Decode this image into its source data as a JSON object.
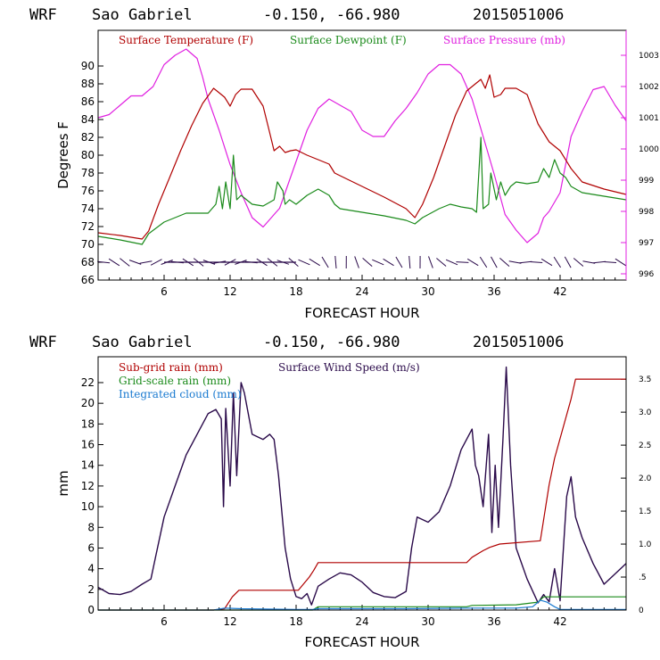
{
  "chart_data": [
    {
      "type": "line",
      "header": {
        "model": "WRF",
        "location": "Sao Gabriel",
        "coords": "-0.150, -66.980",
        "run": "2015051006"
      },
      "xlabel": "FORECAST HOUR",
      "ylabel": "Degrees F",
      "xlim": [
        0,
        48
      ],
      "ylim": [
        66,
        94
      ],
      "y2lim": [
        995.8,
        1003.8
      ],
      "xticks": [
        "6",
        "12",
        "18",
        "24",
        "30",
        "36",
        "42"
      ],
      "xtick_values": [
        6,
        12,
        18,
        24,
        30,
        36,
        42
      ],
      "yticks": [
        "66",
        "68",
        "70",
        "72",
        "74",
        "76",
        "78",
        "80",
        "82",
        "84",
        "86",
        "88",
        "90"
      ],
      "ytick_values": [
        66,
        68,
        70,
        72,
        74,
        76,
        78,
        80,
        82,
        84,
        86,
        88,
        90
      ],
      "y2ticks": [
        "996",
        "997",
        "998",
        "999",
        "1000",
        "1001",
        "1002",
        "1003"
      ],
      "y2tick_values": [
        996,
        997,
        998,
        999,
        1000,
        1001,
        1002,
        1003
      ],
      "colors": {
        "temperature": "#b00000",
        "dewpoint": "#1a8a1a",
        "pressure": "#e020e0",
        "wind": "#2a0a4a"
      },
      "series": [
        {
          "name": "Surface Temperature (F)",
          "axis": "left",
          "color": "#b00000",
          "x": [
            0,
            2,
            4,
            4.6,
            5.5,
            6.5,
            7.5,
            8.5,
            9.5,
            10.5,
            11,
            11.5,
            12,
            12.5,
            13,
            14,
            15,
            15.5,
            16,
            16.5,
            17,
            17.5,
            18,
            19,
            20,
            21,
            21.5,
            22,
            24,
            26,
            28,
            28.8,
            29.5,
            30.5,
            31.5,
            32.5,
            33.5,
            34.3,
            34.8,
            35.2,
            35.6,
            36,
            36.6,
            37,
            37.5,
            38,
            39,
            40,
            41,
            42,
            43,
            44,
            46,
            48
          ],
          "y": [
            71.3,
            71,
            70.6,
            71.5,
            74.5,
            77.5,
            80.5,
            83.3,
            85.8,
            87.5,
            87,
            86.5,
            85.5,
            86.8,
            87.4,
            87.4,
            85.5,
            83,
            80.5,
            81,
            80.3,
            80.5,
            80.6,
            80,
            79.5,
            79,
            78,
            77.7,
            76.5,
            75.3,
            74,
            73,
            74.5,
            77.5,
            81,
            84.5,
            87.2,
            88,
            88.5,
            87.5,
            89,
            86.5,
            86.8,
            87.5,
            87.5,
            87.5,
            86.8,
            83.5,
            81.5,
            80.5,
            78.5,
            77,
            76.2,
            75.6
          ]
        },
        {
          "name": "Surface Dewpoint (F)",
          "axis": "left",
          "color": "#1a8a1a",
          "x": [
            0,
            2,
            4,
            4.6,
            6,
            8,
            10,
            10.7,
            11,
            11.3,
            11.6,
            12,
            12.3,
            12.6,
            13,
            14,
            15,
            16,
            16.3,
            16.8,
            17,
            17.4,
            18,
            19,
            20,
            21,
            21.5,
            22,
            24,
            26,
            28,
            28.8,
            29.5,
            31,
            32,
            33,
            34,
            34.4,
            34.8,
            35,
            35.5,
            35.7,
            36.2,
            36.6,
            37,
            37.5,
            38,
            39,
            40,
            40.5,
            41,
            41.5,
            42,
            42.5,
            43,
            44,
            46,
            48
          ],
          "y": [
            70.9,
            70.5,
            70,
            71.2,
            72.5,
            73.5,
            73.5,
            74.5,
            76.5,
            74,
            77,
            74,
            80,
            75,
            75.5,
            74.5,
            74.3,
            75,
            77,
            76,
            74.5,
            75,
            74.5,
            75.5,
            76.2,
            75.5,
            74.5,
            74,
            73.6,
            73.2,
            72.7,
            72.3,
            73,
            74,
            74.5,
            74.2,
            74,
            73.6,
            82,
            74,
            74.5,
            78,
            75,
            77,
            75.5,
            76.5,
            77,
            76.8,
            77,
            78.5,
            77.5,
            79.5,
            78,
            77.5,
            76.5,
            75.8,
            75.4,
            75
          ]
        },
        {
          "name": "Surface Pressure (mb)",
          "axis": "right",
          "color": "#e020e0",
          "x": [
            0,
            1,
            2,
            3,
            4,
            5,
            6,
            7,
            8,
            9,
            9.5,
            10,
            11,
            12,
            13,
            14,
            15,
            15.5,
            16,
            16.5,
            17,
            18,
            19,
            20,
            21,
            22,
            23,
            24,
            25,
            26,
            27,
            28,
            29,
            30,
            31,
            32,
            33,
            34,
            35,
            36,
            37,
            38,
            39,
            40,
            40.5,
            41,
            42,
            42.5,
            43,
            44,
            45,
            46,
            47,
            48
          ],
          "y": [
            1001.0,
            1001.1,
            1001.4,
            1001.7,
            1001.7,
            1002.0,
            1002.7,
            1003.0,
            1003.2,
            1002.9,
            1002.3,
            1001.6,
            1000.6,
            999.5,
            998.6,
            997.8,
            997.5,
            997.7,
            997.9,
            998.1,
            998.6,
            999.6,
            1000.6,
            1001.3,
            1001.6,
            1001.4,
            1001.2,
            1000.6,
            1000.4,
            1000.4,
            1000.9,
            1001.3,
            1001.8,
            1002.4,
            1002.7,
            1002.7,
            1002.4,
            1001.6,
            1000.4,
            999.2,
            997.9,
            997.4,
            997.0,
            997.3,
            997.8,
            998.0,
            998.6,
            999.5,
            1000.4,
            1001.2,
            1001.9,
            1002.0,
            1001.4,
            1000.9
          ]
        }
      ],
      "wind_barbs": {
        "name": "Surface Wind Speed (m/s)",
        "y_level": 68,
        "x_start": 0.5,
        "x_end": 47.5,
        "count": 50
      },
      "legend": [
        "Surface Temperature (F)",
        "Surface Dewpoint (F)",
        "Surface Pressure (mb)"
      ]
    },
    {
      "type": "line",
      "header": {
        "model": "WRF",
        "location": "Sao Gabriel",
        "coords": "-0.150, -66.980",
        "run": "2015051006"
      },
      "xlabel": "FORECAST HOUR",
      "ylabel": "mm",
      "xlim": [
        0,
        48
      ],
      "ylim": [
        0,
        24.5
      ],
      "y2lim": [
        0,
        3.84
      ],
      "xticks": [
        "6",
        "12",
        "18",
        "24",
        "30",
        "36",
        "42"
      ],
      "xtick_values": [
        6,
        12,
        18,
        24,
        30,
        36,
        42
      ],
      "yticks": [
        "0",
        "2",
        "4",
        "6",
        "8",
        "10",
        "12",
        "14",
        "16",
        "18",
        "20",
        "22"
      ],
      "ytick_values": [
        0,
        2,
        4,
        6,
        8,
        10,
        12,
        14,
        16,
        18,
        20,
        22
      ],
      "y2ticks": [
        "0",
        ".5",
        "1.0",
        "1.5",
        "2.0",
        "2.5",
        "3.0",
        "3.5"
      ],
      "y2tick_values": [
        0,
        0.5,
        1.0,
        1.5,
        2.0,
        2.5,
        3.0,
        3.5
      ],
      "series": [
        {
          "name": "Sub-grid rain (mm)",
          "axis": "right",
          "color": "#b00000",
          "x": [
            0,
            10.5,
            11.5,
            12.2,
            12.8,
            18.2,
            19.2,
            19.6,
            20,
            28,
            33.5,
            34,
            35,
            35.6,
            36.5,
            40.2,
            41,
            41.5,
            43,
            43.4,
            48
          ],
          "y": [
            0,
            0,
            0.02,
            0.2,
            0.3,
            0.3,
            0.5,
            0.6,
            0.72,
            0.72,
            0.72,
            0.8,
            0.9,
            0.95,
            1.0,
            1.05,
            1.9,
            2.3,
            3.2,
            3.5,
            3.5
          ]
        },
        {
          "name": "Grid-scale rain (mm)",
          "axis": "right",
          "color": "#1a8a1a",
          "x": [
            0,
            19.5,
            20,
            33.5,
            34,
            38,
            40,
            40.5,
            48
          ],
          "y": [
            0,
            0,
            0.05,
            0.05,
            0.07,
            0.08,
            0.12,
            0.2,
            0.2
          ]
        },
        {
          "name": "Integrated cloud (mm)",
          "axis": "right",
          "color": "#1a7ad0",
          "x": [
            0,
            10.5,
            11.5,
            13,
            18,
            19.5,
            20,
            28,
            34,
            38,
            39.5,
            40.2,
            40.8,
            41.5,
            42,
            48
          ],
          "y": [
            0,
            0,
            0.03,
            0.02,
            0.01,
            0.01,
            0.02,
            0.02,
            0.03,
            0.03,
            0.05,
            0.15,
            0.12,
            0.05,
            0.01,
            0.01
          ]
        },
        {
          "name": "Surface Wind Speed (m/s)",
          "axis": "left",
          "color": "#2a0a4a",
          "x": [
            0,
            1,
            2,
            3,
            4,
            4.8,
            5.2,
            6,
            7,
            8,
            9,
            10,
            10.7,
            11.2,
            11.4,
            11.6,
            12,
            12.3,
            12.6,
            13,
            13.3,
            14,
            15,
            15.6,
            16,
            16.4,
            17,
            17.5,
            18,
            18.5,
            19,
            19.4,
            20,
            21,
            22,
            23,
            24,
            25,
            26,
            27,
            28,
            28.5,
            29,
            30,
            31,
            32,
            33,
            34,
            34.3,
            34.6,
            35,
            35.5,
            35.8,
            36.1,
            36.4,
            36.8,
            37.1,
            37.5,
            38,
            39,
            40,
            40.5,
            41,
            41.5,
            42,
            42.6,
            43,
            43.4,
            44,
            45,
            46,
            47,
            48
          ],
          "y": [
            2.2,
            1.6,
            1.5,
            1.8,
            2.5,
            3,
            5,
            9,
            12,
            15,
            17,
            19,
            19.4,
            18.5,
            10,
            19.5,
            12,
            21,
            13,
            22,
            21,
            17,
            16.5,
            17,
            16.5,
            13,
            6,
            3,
            1.3,
            1.1,
            1.6,
            0.5,
            2.3,
            3,
            3.6,
            3.4,
            2.7,
            1.7,
            1.3,
            1.2,
            1.8,
            6,
            9,
            8.5,
            9.5,
            12,
            15.5,
            17.5,
            14,
            13,
            10,
            17,
            7.5,
            14,
            8,
            16.5,
            23.5,
            14,
            6,
            3,
            0.7,
            1.5,
            0.8,
            4,
            0.9,
            11,
            12.9,
            9,
            7,
            4.5,
            2.5,
            3.5,
            4.5
          ]
        }
      ],
      "legend": [
        "Sub-grid rain (mm)",
        "Surface Wind Speed (m/s)",
        "Grid-scale rain (mm)",
        "Integrated cloud (mm)"
      ]
    }
  ]
}
